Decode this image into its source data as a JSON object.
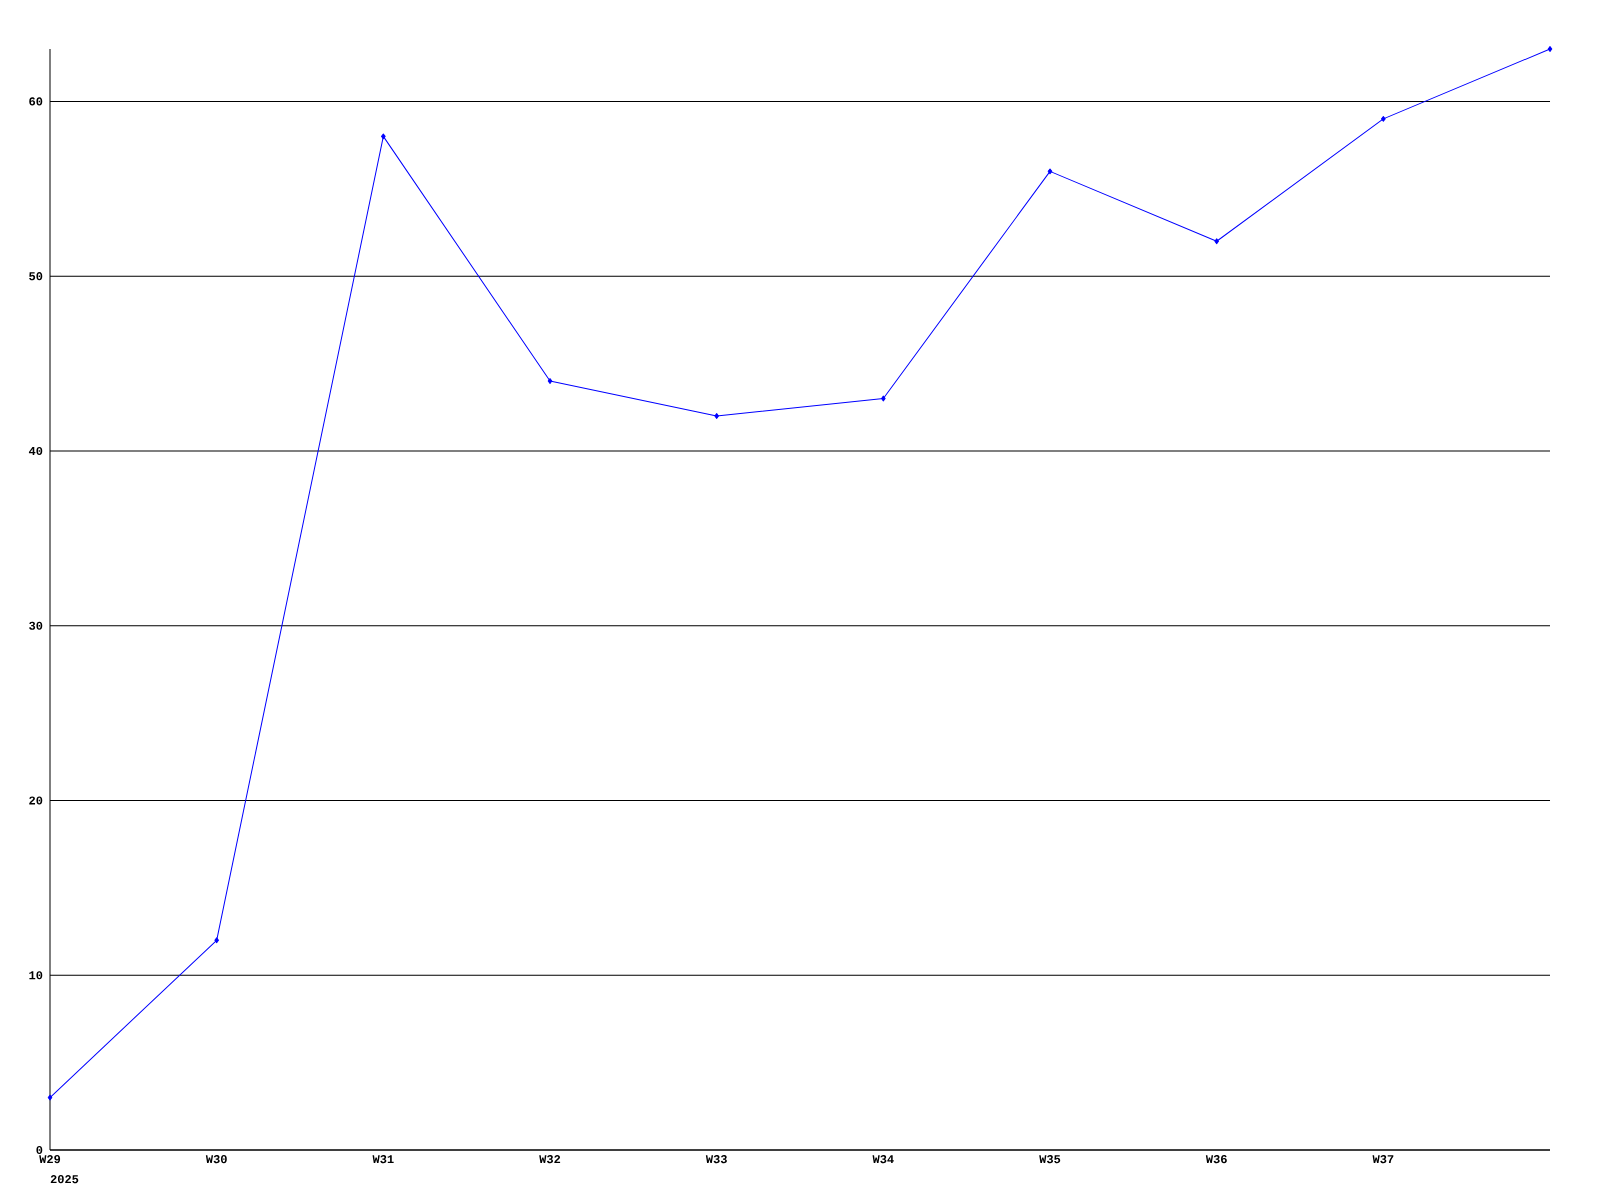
{
  "chart_data": {
    "type": "line",
    "categories": [
      "W29",
      "W30",
      "W31",
      "W32",
      "W33",
      "W34",
      "W35",
      "W36",
      "W37",
      null
    ],
    "values": [
      3,
      12,
      58,
      44,
      42,
      43,
      56,
      52,
      59,
      63
    ],
    "color": "#0000ff",
    "ylim": [
      0,
      63
    ],
    "yticks": [
      0,
      10,
      20,
      30,
      40,
      50,
      60
    ],
    "grid": "y",
    "marker": "diamond",
    "line_style": "solid",
    "annotations": [
      "2025"
    ]
  }
}
